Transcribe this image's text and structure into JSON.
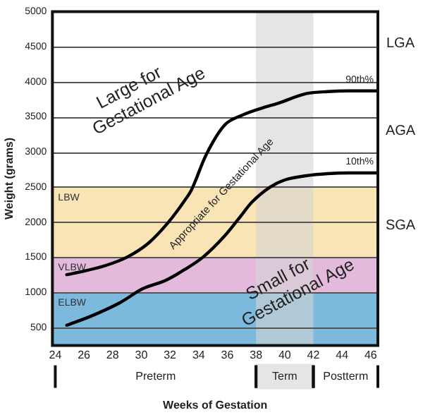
{
  "chart_data": {
    "type": "line",
    "xlabel": "Weeks of Gestation",
    "ylabel": "Weight (grams)",
    "xlim": [
      23.8,
      46.5
    ],
    "xticks": [
      24,
      26,
      28,
      30,
      32,
      34,
      36,
      38,
      40,
      42,
      44,
      46
    ],
    "ylim": [
      240,
      5000
    ],
    "yticks": [
      500,
      1000,
      1500,
      2000,
      2500,
      3000,
      3500,
      4000,
      4500,
      5000
    ],
    "grid": "y",
    "legend": false,
    "marker": "none",
    "line_style": "solid",
    "series": [
      {
        "name": "90th%",
        "color": "#000000",
        "x": [
          24.8,
          26,
          27.5,
          29,
          30.5,
          31.9,
          33,
          33.5,
          34.5,
          35.8,
          37,
          38.5,
          39.5,
          41.5,
          43,
          44.5,
          46.5
        ],
        "values": [
          1250,
          1300,
          1380,
          1500,
          1700,
          2000,
          2300,
          2460,
          2950,
          3380,
          3520,
          3630,
          3690,
          3830,
          3860,
          3870,
          3870
        ]
      },
      {
        "name": "10th%",
        "color": "#000000",
        "x": [
          24.8,
          26.5,
          28.5,
          30.1,
          31.7,
          33,
          34.3,
          35.8,
          36.8,
          37.7,
          39,
          40,
          41.5,
          43,
          44.5,
          46.5
        ],
        "values": [
          530,
          660,
          850,
          1050,
          1170,
          1320,
          1500,
          1800,
          2050,
          2280,
          2500,
          2600,
          2660,
          2690,
          2700,
          2700
        ]
      }
    ],
    "bands": [
      {
        "axis": "y",
        "from": 240,
        "to": 1000,
        "label": "ELBW",
        "color": "#7cb9dc"
      },
      {
        "axis": "y",
        "from": 1000,
        "to": 1500,
        "label": "VLBW",
        "color": "#e3badb"
      },
      {
        "axis": "y",
        "from": 1500,
        "to": 2500,
        "label": "LBW",
        "color": "#f9e4b5"
      },
      {
        "axis": "x",
        "from": 38,
        "to": 42,
        "label": "Term",
        "color": "#d4d4d4"
      }
    ],
    "annotations": [
      "Large for Gestational Age",
      "Appropriate for Gestational Age",
      "Small for Gestational Age",
      "LGA",
      "AGA",
      "SGA",
      "Preterm",
      "Postterm"
    ]
  }
}
